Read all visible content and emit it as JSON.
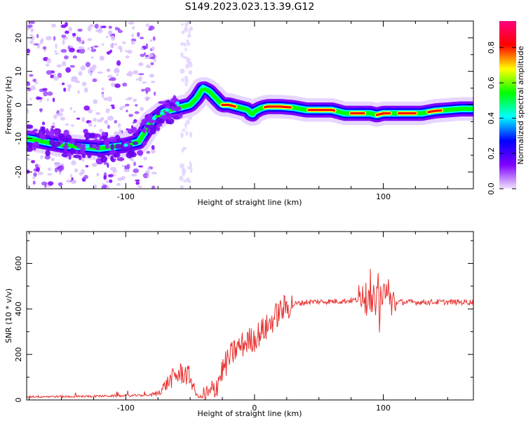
{
  "title": "S149.2023.023.13.39.G12",
  "chart_data": [
    {
      "type": "heatmap",
      "xlabel": "Height of straight line (km)",
      "ylabel": "Frequency (Hz)",
      "xlim": [
        -177,
        170
      ],
      "ylim": [
        -25,
        25
      ],
      "x_ticks": [
        -100,
        0,
        100
      ],
      "x_tick_labels": [
        "-100",
        "",
        "100"
      ],
      "y_ticks": [
        -20,
        -10,
        0,
        10,
        20
      ],
      "y_tick_labels": [
        "-20",
        "-10",
        "0",
        "10",
        "20"
      ],
      "ridge": {
        "x": [
          -177,
          -150,
          -120,
          -100,
          -90,
          -80,
          -70,
          -60,
          -50,
          -45,
          -40,
          -35,
          -30,
          -25,
          -20,
          -10,
          -5,
          -2,
          0,
          5,
          10,
          20,
          30,
          40,
          50,
          60,
          70,
          80,
          90,
          95,
          100,
          110,
          120,
          130,
          140,
          150,
          160,
          170
        ],
        "y": [
          -10,
          -12,
          -13,
          -12,
          -11,
          -5,
          -2,
          -1,
          0,
          2,
          5,
          4,
          2,
          0,
          0,
          -1,
          -1.5,
          -3,
          -2,
          -1,
          -0.5,
          -0.5,
          -0.8,
          -1.5,
          -1.5,
          -1.5,
          -2.5,
          -2.5,
          -2.5,
          -3,
          -2.5,
          -2.5,
          -2.5,
          -2.5,
          -1.8,
          -1.5,
          -1.2,
          -1.2
        ]
      },
      "colorbar": {
        "label": "Normalized spectral amplitude",
        "ticks": [
          0.0,
          0.2,
          0.4,
          0.6,
          0.8
        ],
        "tick_labels": [
          "0.0",
          "0.2",
          "0.4",
          "0.6",
          "0.8"
        ],
        "range": [
          0,
          0.95
        ],
        "colormap": [
          "#f0e4ff",
          "#7f00ff",
          "#0000ff",
          "#00ffff",
          "#00ff00",
          "#ffff00",
          "#ff0000",
          "#ff007f"
        ]
      }
    },
    {
      "type": "line",
      "xlabel": "Height of straight line (km)",
      "ylabel": "SNR (10 * v/v)",
      "xlim": [
        -177,
        170
      ],
      "ylim": [
        0,
        740
      ],
      "x_ticks": [
        -100,
        0,
        100
      ],
      "x_tick_labels": [
        "-100",
        "0",
        "100"
      ],
      "y_ticks": [
        0,
        200,
        400,
        600
      ],
      "y_tick_labels": [
        "0",
        "200",
        "400",
        "600"
      ],
      "color": "#e8312f",
      "series": [
        {
          "x": [
            -177,
            -160,
            -140,
            -120,
            -100,
            -90,
            -80,
            -75,
            -70,
            -65,
            -60,
            -55,
            -50,
            -45,
            -40,
            -35,
            -30,
            -25,
            -20,
            -15,
            -10,
            -5,
            0,
            5,
            10,
            15,
            20,
            25,
            30,
            40,
            50,
            60,
            70,
            80,
            84,
            88,
            92,
            96,
            100,
            102,
            104,
            106,
            110,
            120,
            130,
            140,
            150,
            160,
            170
          ],
          "y": [
            15,
            15,
            15,
            17,
            18,
            20,
            22,
            30,
            60,
            90,
            110,
            120,
            100,
            20,
            10,
            20,
            60,
            130,
            180,
            220,
            240,
            260,
            270,
            300,
            320,
            360,
            390,
            410,
            420,
            430,
            432,
            433,
            435,
            440,
            470,
            430,
            438,
            440,
            430,
            520,
            430,
            432,
            430,
            430,
            430,
            430,
            430,
            430,
            430
          ]
        }
      ]
    }
  ]
}
